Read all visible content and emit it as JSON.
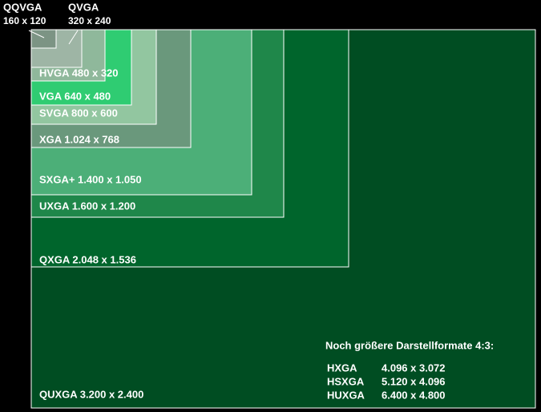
{
  "nodes": [
    {
      "label": "QUXGA 3.200 x 2.400"
    },
    {
      "label": "QXGA 2.048 x 1.536"
    },
    {
      "label": "UXGA 1.600 x 1.200"
    },
    {
      "label": "SXGA+ 1.400 x 1.050"
    },
    {
      "label": "XGA 1.024 x 768"
    },
    {
      "label": "SVGA 800 x 600"
    },
    {
      "label": "VGA 640 x 480"
    },
    {
      "label": "HVGA 480 x 320"
    },
    {
      "label": "QVGA",
      "sublabel": "320 x 240"
    },
    {
      "label": "QQVGA",
      "sublabel": "160 x 120"
    }
  ],
  "note": {
    "title": "Noch größere Darstellformate 4:3:",
    "rows": [
      [
        "HXGA",
        "4.096 x 3.072"
      ],
      [
        "HSXGA",
        "5.120 x 4.096"
      ],
      [
        "HUXGA",
        "6.400 x 4.800"
      ]
    ]
  }
}
